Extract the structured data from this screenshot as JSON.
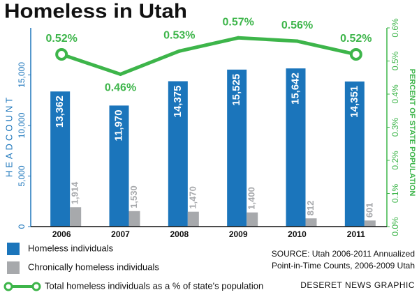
{
  "chart_data": {
    "type": "bar",
    "title": "Homeless in Utah",
    "categories": [
      "2006",
      "2007",
      "2008",
      "2009",
      "2010",
      "2011"
    ],
    "series": [
      {
        "name": "Homeless individuals",
        "color": "#1b75bb",
        "values": [
          13362,
          11970,
          14375,
          15525,
          15642,
          14351
        ],
        "value_labels": [
          "13,362",
          "11,970",
          "14,375",
          "15,525",
          "15,642",
          "14,351"
        ]
      },
      {
        "name": "Chronically homeless individuals",
        "color": "#a7a9ac",
        "values": [
          1914,
          1530,
          1470,
          1400,
          812,
          601
        ],
        "value_labels": [
          "1,914",
          "1,530",
          "1,470",
          "1,400",
          "812",
          "601"
        ]
      },
      {
        "name": "Total homeless individuals as a % of state's population",
        "type": "line",
        "axis": "y2",
        "color": "#3db54a",
        "values": [
          0.52,
          0.46,
          0.53,
          0.57,
          0.56,
          0.52
        ],
        "value_labels": [
          "0.52%",
          "0.46%",
          "0.53%",
          "0.57%",
          "0.56%",
          "0.52%"
        ]
      }
    ],
    "ylabel": "HEADCOUNT",
    "y2label": "PERCENT OF STATE POPULATION",
    "ylim": [
      0,
      19650
    ],
    "yticks": [
      0,
      {
        "value": 5000,
        "label": "5,000"
      },
      {
        "value": 10000,
        "label": "10,000"
      },
      {
        "value": 15000,
        "label": "15,000"
      }
    ],
    "y2lim": [
      0,
      0.6
    ],
    "y2ticks": [
      {
        "value": 0,
        "label": "0.0%"
      },
      {
        "value": 0.1,
        "label": "0.1%"
      },
      {
        "value": 0.2,
        "label": "0.2%"
      },
      {
        "value": 0.3,
        "label": "0.3%"
      },
      {
        "value": 0.4,
        "label": "0.4%"
      },
      {
        "value": 0.5,
        "label": "0.5%"
      },
      {
        "value": 0.6,
        "label": "0.6%"
      }
    ],
    "source": [
      "SOURCE: Utah 2006-2011 Annualized",
      "Point-in-Time Counts, 2006-2009 Utah"
    ],
    "credit": "DESERET NEWS GRAPHIC"
  }
}
